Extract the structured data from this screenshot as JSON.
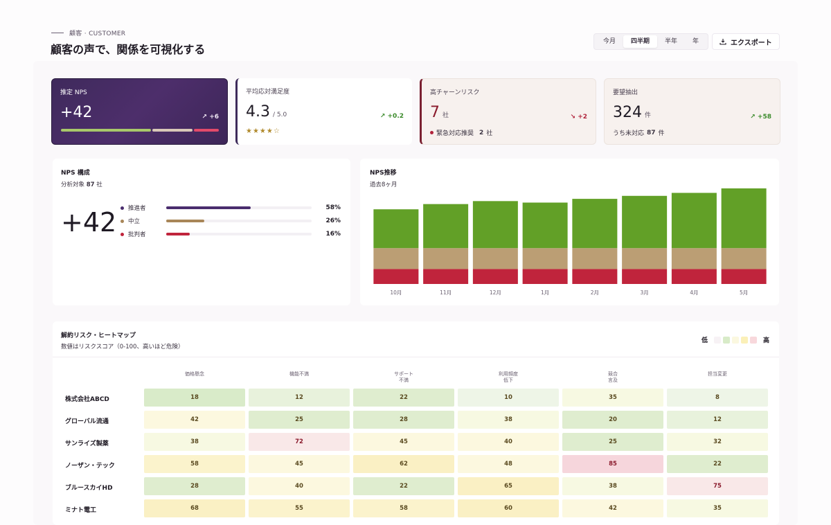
{
  "header": {
    "eyebrow": "顧客 · CUSTOMER",
    "title": "顧客の声で、関係を可視化する",
    "periods": [
      "今月",
      "四半期",
      "半年",
      "年"
    ],
    "active_period": "四半期",
    "export_label": "エクスポート"
  },
  "kpis": {
    "nps": {
      "label": "推定 NPS",
      "value": "+42",
      "delta": "+6"
    },
    "satisfaction": {
      "label": "平均応対満足度",
      "value": "4.3",
      "unit": "/ 5.0",
      "delta": "+0.2",
      "stars": "★★★★☆"
    },
    "churn": {
      "label": "高チャーンリスク",
      "value": "7",
      "unit": "社",
      "delta": "+2",
      "sub_label": "緊急対応推奨",
      "sub_value": "2",
      "sub_unit": "社"
    },
    "requests": {
      "label": "要望抽出",
      "value": "324",
      "unit": "件",
      "delta": "+58",
      "sub_label": "うち未対応",
      "sub_value": "87",
      "sub_unit": "件"
    }
  },
  "nps_card": {
    "title": "NPS 構成",
    "subtitle_prefix": "分析対象",
    "subtitle_value": "87",
    "subtitle_unit": "社",
    "score": "+42",
    "rows": [
      {
        "label": "推進者",
        "pct": "58%",
        "value": 58,
        "color": "#4a2d6e"
      },
      {
        "label": "中立",
        "pct": "26%",
        "value": 26,
        "color": "#a88658"
      },
      {
        "label": "批判者",
        "pct": "16%",
        "value": 16,
        "color": "#c0243c"
      }
    ]
  },
  "trend_card": {
    "title": "NPS推移",
    "subtitle": "過去8ヶ月"
  },
  "chart_data": {
    "type": "bar",
    "categories": [
      "10月",
      "11月",
      "12月",
      "1月",
      "2月",
      "3月",
      "4月",
      "5月"
    ],
    "series": [
      {
        "values": [
          20,
          20,
          20,
          20,
          20,
          20,
          20,
          20
        ],
        "color": "#c0243c"
      },
      {
        "values": [
          28,
          28,
          28,
          28,
          28,
          28,
          28,
          28
        ],
        "color": "#bb9e74"
      },
      {
        "values": [
          52,
          59,
          63,
          61,
          66,
          70,
          74,
          80
        ],
        "color": "#62a027"
      }
    ],
    "stacked": true,
    "grid": false
  },
  "heatmap": {
    "title": "解約リスク・ヒートマップ",
    "subtitle": "数値はリスクスコア（0-100、高いほど危険）",
    "legend_low": "低",
    "legend_high": "高",
    "columns": [
      "価格懸念",
      "機能不満",
      "サポート\n不満",
      "利用頻度\n低下",
      "競合\n言及",
      "担当変更"
    ],
    "rows": [
      {
        "name": "株式会社ABCD",
        "values": [
          18,
          12,
          22,
          10,
          35,
          8
        ]
      },
      {
        "name": "グローバル流通",
        "values": [
          42,
          25,
          28,
          38,
          20,
          12
        ]
      },
      {
        "name": "サンライズ製薬",
        "values": [
          38,
          72,
          45,
          40,
          25,
          32
        ]
      },
      {
        "name": "ノーザン・テック",
        "values": [
          58,
          45,
          62,
          48,
          85,
          22
        ]
      },
      {
        "name": "ブルースカイHD",
        "values": [
          28,
          40,
          22,
          65,
          38,
          75
        ]
      },
      {
        "name": "ミナト電工",
        "values": [
          68,
          55,
          58,
          60,
          42,
          35
        ]
      }
    ]
  }
}
